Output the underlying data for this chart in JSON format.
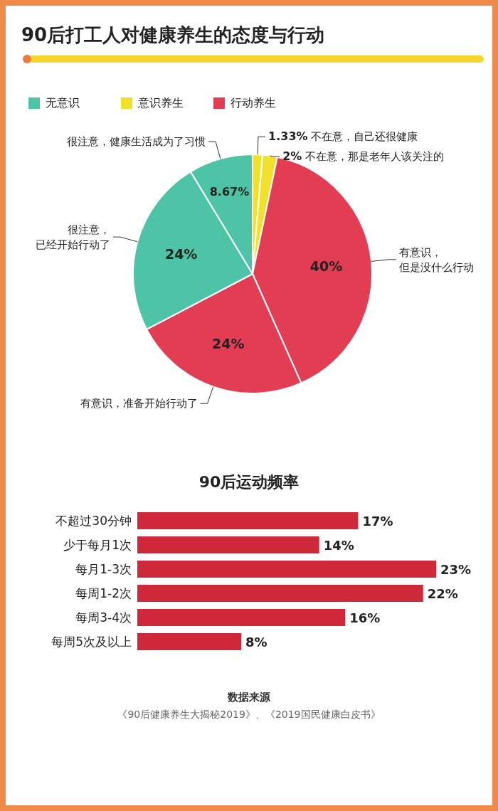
{
  "chart_data": [
    {
      "type": "pie",
      "title": "90后打工人对健康养生的态度与行动",
      "categories": [
        "不在意，自己还很健康",
        "不在意，那是老年人该关注的",
        "有意识，但是没什么行动",
        "有意识，准备开始行动了",
        "很注意，已经开始行动了",
        "很注意，健康生活成为了习惯"
      ],
      "values": [
        1.33,
        2,
        40,
        24,
        24,
        8.67
      ],
      "colors": [
        "#f2e12a",
        "#f2e12a",
        "#e23d52",
        "#e23d52",
        "#4ec4a6",
        "#4ec4a6"
      ],
      "value_labels": [
        "1.33%",
        "2%",
        "40%",
        "24%",
        "24%",
        "8.67%"
      ]
    },
    {
      "type": "other",
      "categories": [
        "无意识",
        "意识养生",
        "行动养生"
      ],
      "colors": [
        "#4ec4a6",
        "#f2e12a",
        "#e23d52"
      ]
    },
    {
      "type": "bar",
      "orientation": "horizontal",
      "title": "90后运动频率",
      "color": "#d0283b",
      "categories": [
        "不超过30分钟",
        "少于每月1次",
        "每月1-3次",
        "每周1-2次",
        "每周3-4次",
        "每周5次及以上"
      ],
      "values": [
        17,
        14,
        23,
        22,
        16,
        8
      ],
      "value_labels": [
        "17%",
        "14%",
        "23%",
        "22%",
        "16%",
        "8%"
      ],
      "annotations": [
        "数据来源",
        "《90后健康养生大揭秘2019》、《2019国民健康白皮书》"
      ]
    }
  ]
}
